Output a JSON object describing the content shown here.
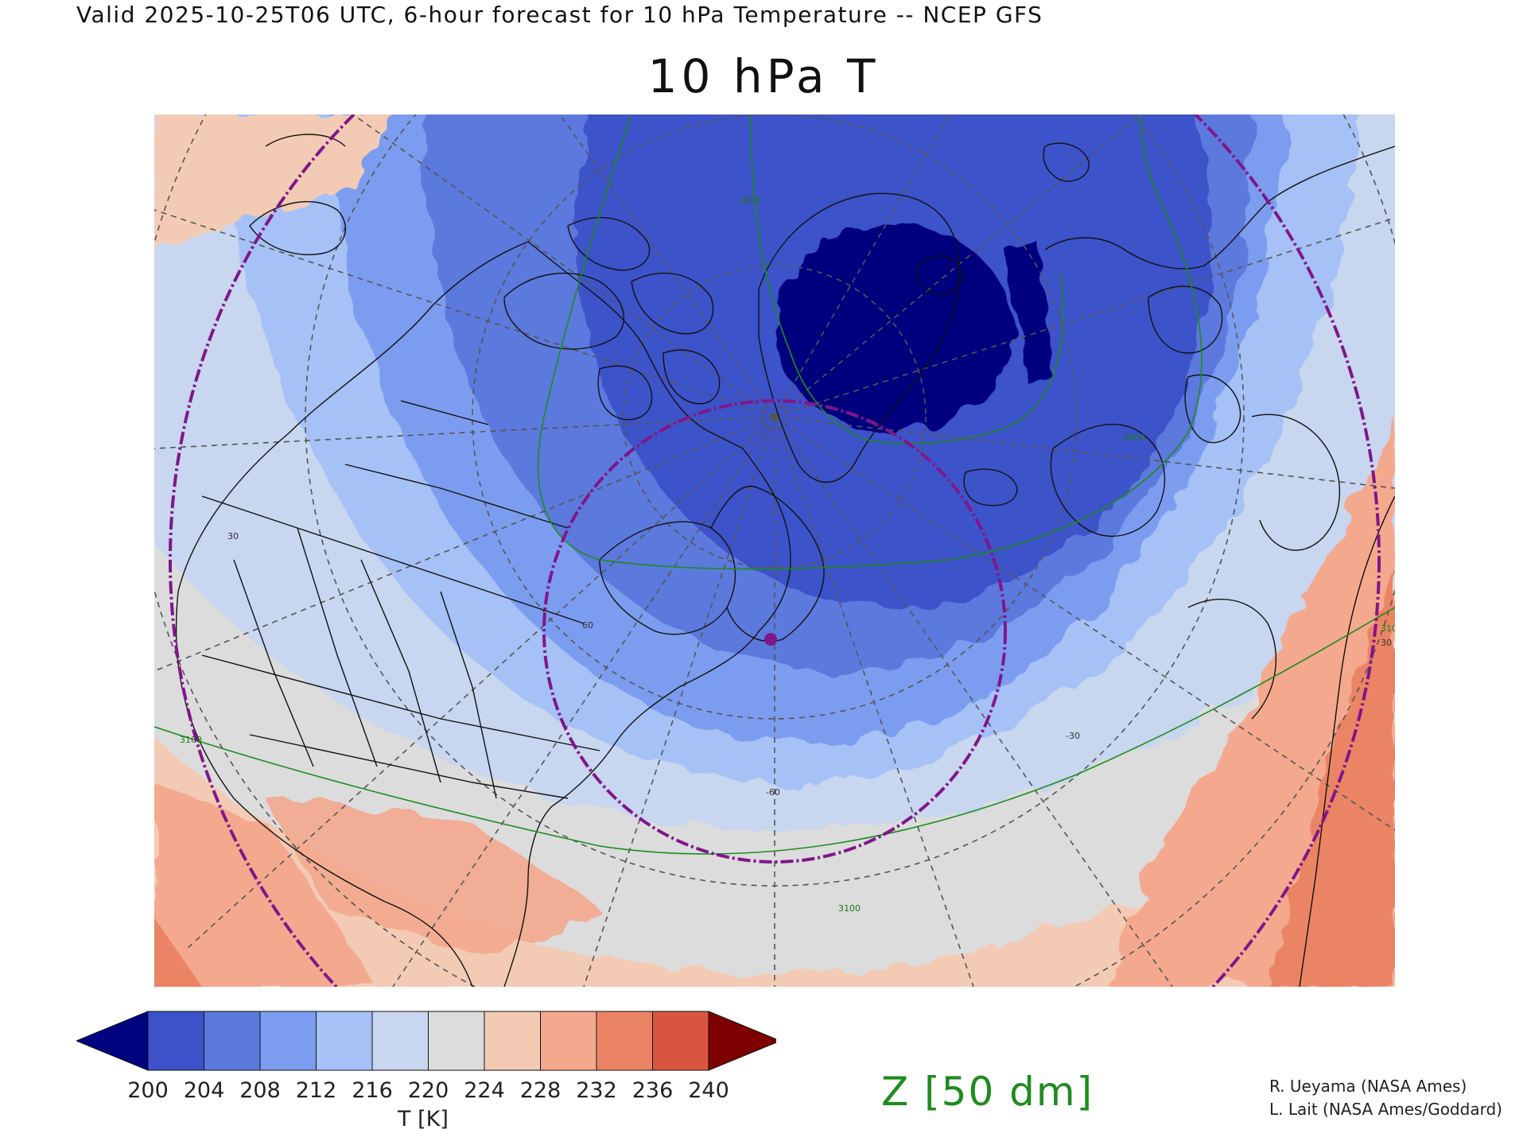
{
  "header": {
    "valid_line": "Valid 2025-10-25T06 UTC, 6-hour forecast for 10 hPa Temperature -- NCEP GFS",
    "title": "10 hPa T"
  },
  "map": {
    "colors": {
      "t200": "#2a3db8",
      "t204": "#3d52c9",
      "t208": "#5b79dd",
      "t212": "#7c9def",
      "t216": "#a6c1f5",
      "t220": "#c8d6ef",
      "t224": "#dcdcdc",
      "t228": "#f3cbb5",
      "t232": "#f4a98e",
      "t236": "#eb8465",
      "t240": "#d9553f",
      "below": "#00037f",
      "above": "#7f0000",
      "height_contour": "#1e8c1e",
      "circles": "#80168a",
      "coast": "#111111",
      "grid": "#555555"
    },
    "height_contour_labels": [
      "3100",
      "3100",
      "3100",
      "3000",
      "3000"
    ],
    "grid_labels": [
      "-60",
      "-30",
      "60",
      "30",
      "30"
    ]
  },
  "colorbar": {
    "ticks": [
      "200",
      "204",
      "208",
      "212",
      "216",
      "220",
      "224",
      "228",
      "232",
      "236",
      "240"
    ],
    "colors": [
      "#00037f",
      "#3d52c9",
      "#5b79dd",
      "#7c9def",
      "#a6c1f5",
      "#c8d6ef",
      "#dcdcdc",
      "#f3cbb5",
      "#f4a98e",
      "#eb8465",
      "#d9553f",
      "#7f0000"
    ],
    "label": "T [K]"
  },
  "contour_legend": {
    "label": "Z [50 dm]"
  },
  "credits": {
    "line1": "R. Ueyama (NASA Ames)",
    "line2": "L. Lait (NASA Ames/Goddard)"
  }
}
